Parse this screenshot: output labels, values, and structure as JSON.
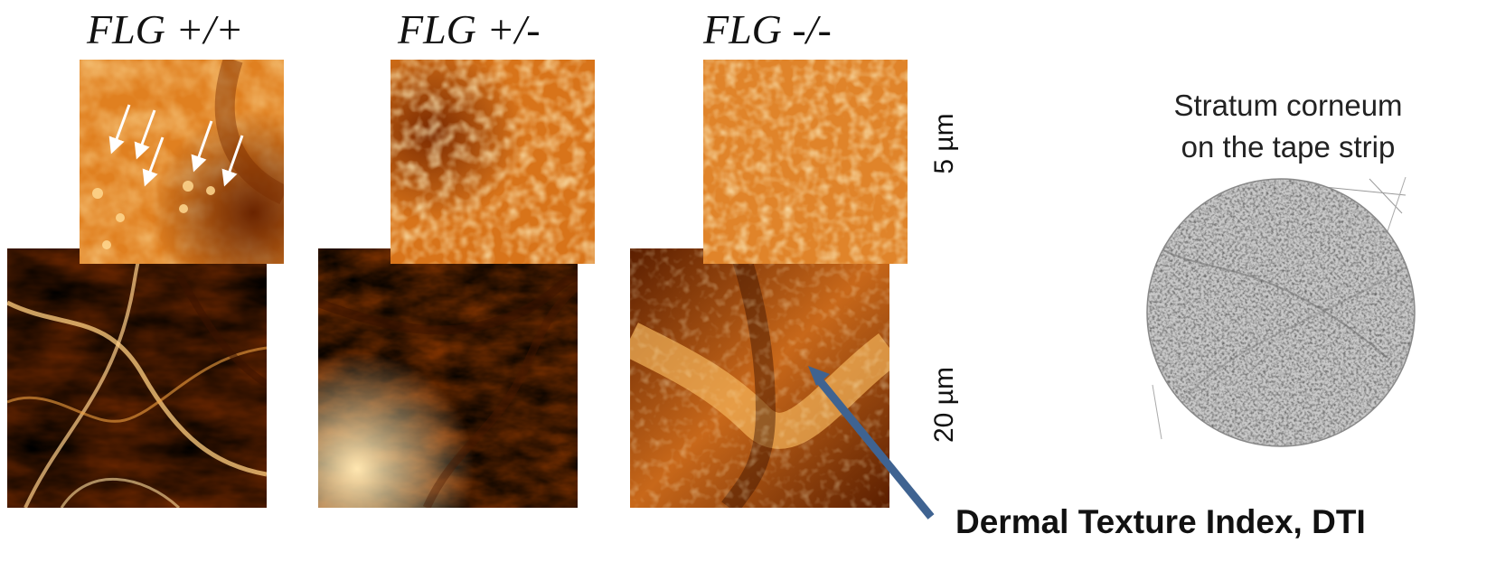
{
  "genotypes": {
    "wt": "FLG +/+",
    "het": "FLG +/-",
    "ko": "FLG -/-"
  },
  "scale_bars": {
    "top_row": "5 µm",
    "bottom_row": "20 µm"
  },
  "stratum_corneum": {
    "line1": "Stratum corneum",
    "line2": "on the tape strip"
  },
  "pointer_label": "Dermal Texture  Index, DTI",
  "colors": {
    "afm_dark": "#3a1200",
    "afm_mid": "#c0600a",
    "afm_light": "#ffd98a",
    "pointer_arrow": "#3f6391"
  }
}
